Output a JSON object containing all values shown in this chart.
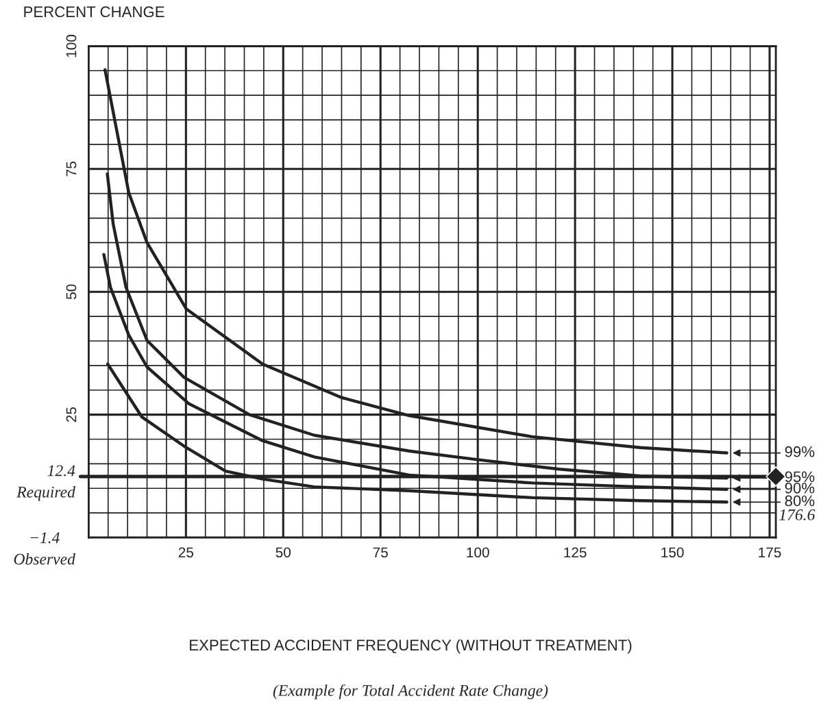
{
  "chart_data": {
    "type": "line",
    "ylabel": "PERCENT CHANGE",
    "xlim": [
      0,
      176.6
    ],
    "ylim": [
      0,
      100
    ],
    "xticks": [
      {
        "value": 0,
        "label": null
      },
      {
        "value": 5,
        "label": null
      },
      {
        "value": 10,
        "label": null
      },
      {
        "value": 15,
        "label": null
      },
      {
        "value": 20,
        "label": null
      },
      25,
      {
        "value": 30,
        "label": null
      },
      {
        "value": 35,
        "label": null
      },
      {
        "value": 40,
        "label": null
      },
      {
        "value": 45,
        "label": null
      },
      50,
      {
        "value": 55,
        "label": null
      },
      {
        "value": 60,
        "label": null
      },
      {
        "value": 65,
        "label": null
      },
      {
        "value": 70,
        "label": null
      },
      75,
      {
        "value": 80,
        "label": null
      },
      {
        "value": 85,
        "label": null
      },
      {
        "value": 90,
        "label": null
      },
      {
        "value": 95,
        "label": null
      },
      100,
      {
        "value": 105,
        "label": null
      },
      {
        "value": 110,
        "label": null
      },
      {
        "value": 115,
        "label": null
      },
      {
        "value": 120,
        "label": null
      },
      125,
      {
        "value": 130,
        "label": null
      },
      {
        "value": 135,
        "label": null
      },
      {
        "value": 140,
        "label": null
      },
      {
        "value": 145,
        "label": null
      },
      150,
      {
        "value": 155,
        "label": null
      },
      {
        "value": 160,
        "label": null
      },
      {
        "value": 165,
        "label": null
      },
      {
        "value": 170,
        "label": null
      },
      175
    ],
    "yticks": [
      {
        "value": 0,
        "label": null
      },
      {
        "value": 5,
        "label": null
      },
      {
        "value": 10,
        "label": null
      },
      {
        "value": 15,
        "label": null
      },
      {
        "value": 20,
        "label": null
      },
      25,
      {
        "value": 30,
        "label": null
      },
      {
        "value": 35,
        "label": null
      },
      {
        "value": 40,
        "label": null
      },
      {
        "value": 45,
        "label": null
      },
      50,
      {
        "value": 55,
        "label": null
      },
      {
        "value": 60,
        "label": null
      },
      {
        "value": 65,
        "label": null
      },
      {
        "value": 70,
        "label": null
      },
      75,
      {
        "value": 80,
        "label": null
      },
      {
        "value": 85,
        "label": null
      },
      {
        "value": 90,
        "label": null
      },
      {
        "value": 95,
        "label": null
      },
      100
    ],
    "grid": true,
    "legend": "right",
    "marker": "none",
    "line_style": "solid",
    "series": [
      {
        "name": "99%",
        "color": "#222222",
        "x": [
          4.2,
          10.3,
          15,
          25.1,
          44.7,
          64.9,
          82.4,
          114,
          141.8,
          164
        ],
        "values": [
          95.2,
          70.2,
          60,
          46.5,
          35.3,
          28.5,
          24.8,
          20.5,
          18.3,
          17.2
        ]
      },
      {
        "name": "95%",
        "color": "#222222",
        "x": [
          4.8,
          6.3,
          9.6,
          15,
          24.5,
          41.3,
          58,
          82.4,
          99.3,
          121,
          141.8,
          164
        ],
        "values": [
          74,
          63.8,
          50.9,
          40.1,
          32.6,
          25,
          20.8,
          17.6,
          15.9,
          13.9,
          12.5,
          12.1
        ]
      },
      {
        "name": "90%",
        "color": "#222222",
        "x": [
          3.9,
          5.6,
          10.3,
          15,
          25.8,
          44.7,
          58,
          82.4,
          114,
          141.8,
          164
        ],
        "values": [
          57.6,
          50.9,
          41.2,
          34.7,
          27.2,
          19.7,
          16.4,
          12.7,
          11.1,
          10.3,
          9.8
        ]
      },
      {
        "name": "80%",
        "color": "#222222",
        "x": [
          4.9,
          13.7,
          24.5,
          35.2,
          44.7,
          58,
          82.4,
          114,
          141.8,
          164
        ],
        "values": [
          35.3,
          24.5,
          18.6,
          13.5,
          11.9,
          10.3,
          9.5,
          8.1,
          7.5,
          7.2
        ]
      },
      {
        "type": "scatter",
        "color": "#222222",
        "marker": "diamond",
        "x": [
          176.6
        ],
        "values": [
          12.4
        ]
      }
    ],
    "ref_lines": [
      {
        "axis": "y",
        "value": 12.4,
        "label": "12.4\nRequired",
        "color": "#222222"
      }
    ],
    "annotations": [
      {
        "text": "176.6",
        "x": 176.6,
        "y": 12.4
      },
      "−1.4\nObserved",
      "EXPECTED ACCIDENT FREQUENCY (WITHOUT TREATMENT)",
      "(Example for Total Accident Rate Change)"
    ]
  }
}
